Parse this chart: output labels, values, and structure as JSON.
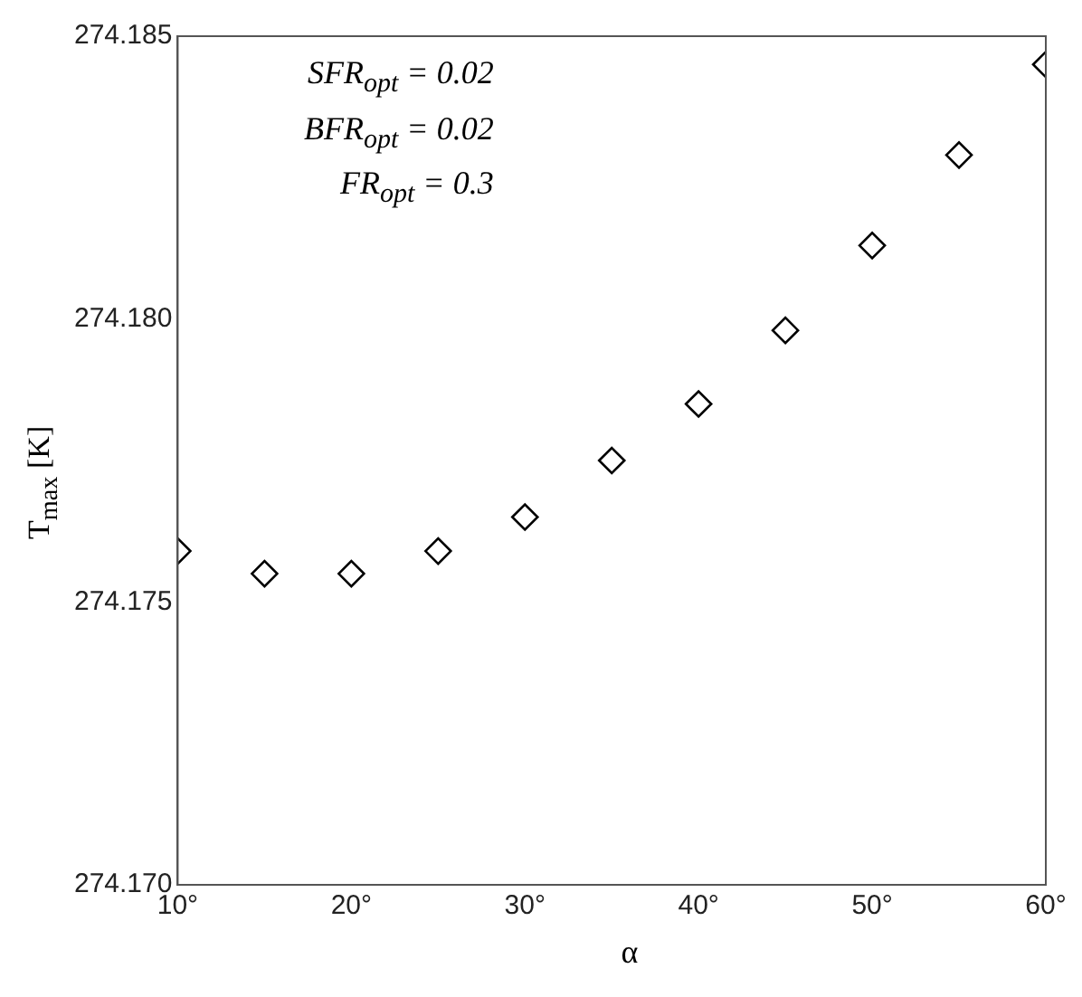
{
  "chart_data": {
    "type": "scatter",
    "xlabel": "α",
    "ylabel": "T$_{max}$ [K]",
    "x": [
      10,
      15,
      20,
      25,
      30,
      35,
      40,
      45,
      50,
      55,
      60
    ],
    "values": [
      274.1759,
      274.1755,
      274.1755,
      274.1759,
      274.1765,
      274.1775,
      274.1785,
      274.1798,
      274.1813,
      274.1829,
      274.1845
    ],
    "color": "#000000",
    "marker": "diamond",
    "grid": false,
    "legend": false,
    "xlim": [
      10,
      60
    ],
    "xticks": [
      {
        "value": 10,
        "label": "10°"
      },
      {
        "value": 20,
        "label": "20°"
      },
      {
        "value": 30,
        "label": "30°"
      },
      {
        "value": 40,
        "label": "40°"
      },
      {
        "value": 50,
        "label": "50°"
      },
      {
        "value": 60,
        "label": "60°"
      }
    ],
    "ylim": [
      274.17,
      274.185
    ],
    "yticks": [
      {
        "value": 274.17,
        "label": "274.170"
      },
      {
        "value": 274.175,
        "label": "274.175"
      },
      {
        "value": 274.18,
        "label": "274.180"
      },
      {
        "value": 274.185,
        "label": "274.185"
      }
    ],
    "annotations": [
      "SFR$_{opt}$ = 0.02",
      "BFR$_{opt}$ = 0.02",
      "FR$_{opt}$ = 0.3"
    ]
  }
}
